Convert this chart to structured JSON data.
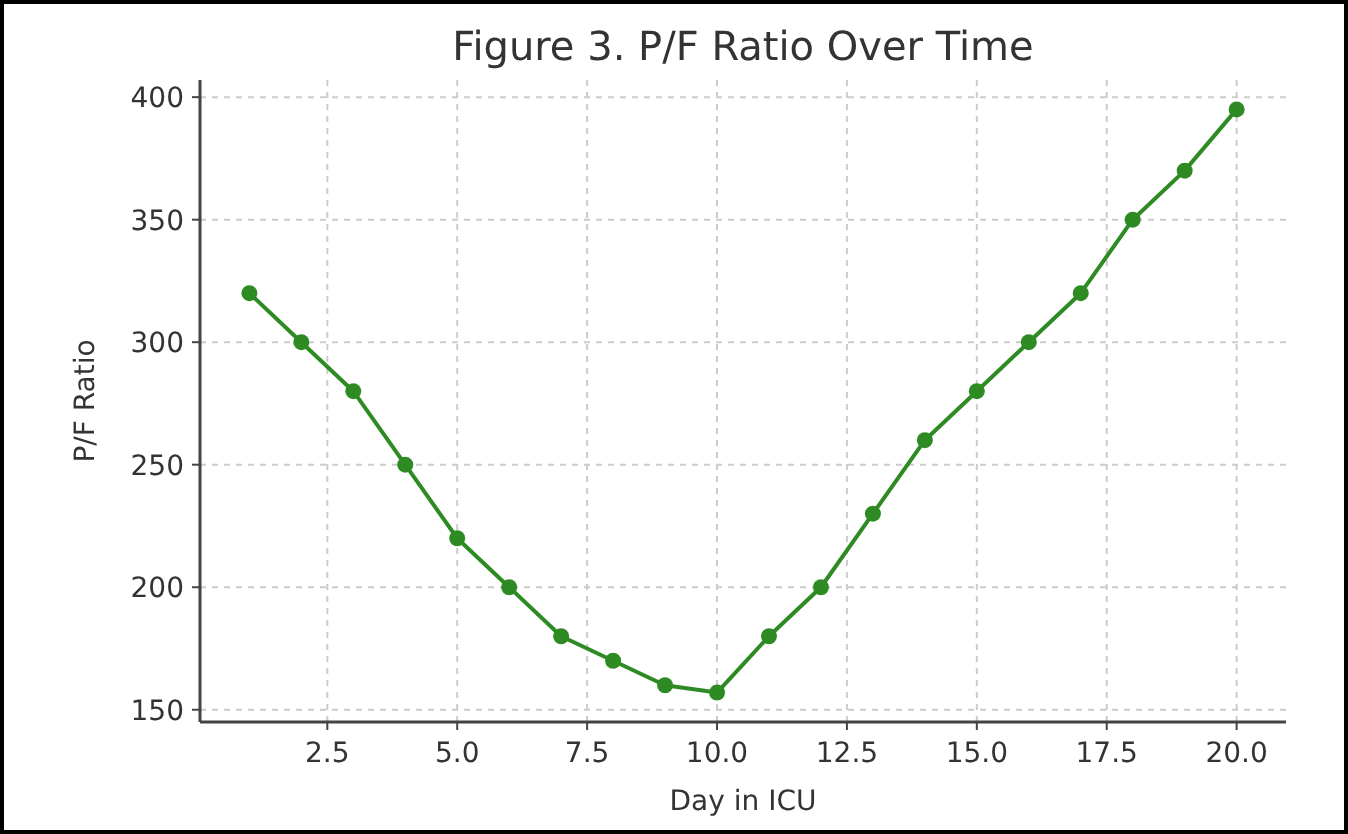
{
  "chart_data": {
    "type": "line",
    "title": "Figure 3. P/F Ratio Over Time",
    "xlabel": "Day in ICU",
    "ylabel": "P/F Ratio",
    "x": [
      1,
      2,
      3,
      4,
      5,
      6,
      7,
      8,
      9,
      10,
      11,
      12,
      13,
      14,
      15,
      16,
      17,
      18,
      19,
      20
    ],
    "series": [
      {
        "color": "#2e8b24",
        "values": [
          320,
          300,
          280,
          250,
          220,
          200,
          180,
          170,
          160,
          157,
          180,
          200,
          230,
          260,
          280,
          300,
          320,
          350,
          370,
          395
        ]
      }
    ],
    "xlim": [
      0.05,
      20.95
    ],
    "xticks": [
      {
        "value": 2.5,
        "label": "2.5"
      },
      {
        "value": 5,
        "label": "5.0"
      },
      {
        "value": 7.5,
        "label": "7.5"
      },
      {
        "value": 10,
        "label": "10.0"
      },
      {
        "value": 12.5,
        "label": "12.5"
      },
      {
        "value": 15,
        "label": "15.0"
      },
      {
        "value": 17.5,
        "label": "17.5"
      },
      {
        "value": 20,
        "label": "20.0"
      }
    ],
    "ylim": [
      145,
      407
    ],
    "yticks": [
      150,
      200,
      250,
      300,
      350,
      400
    ],
    "grid": true,
    "marker": "circle",
    "line_style": "solid"
  }
}
